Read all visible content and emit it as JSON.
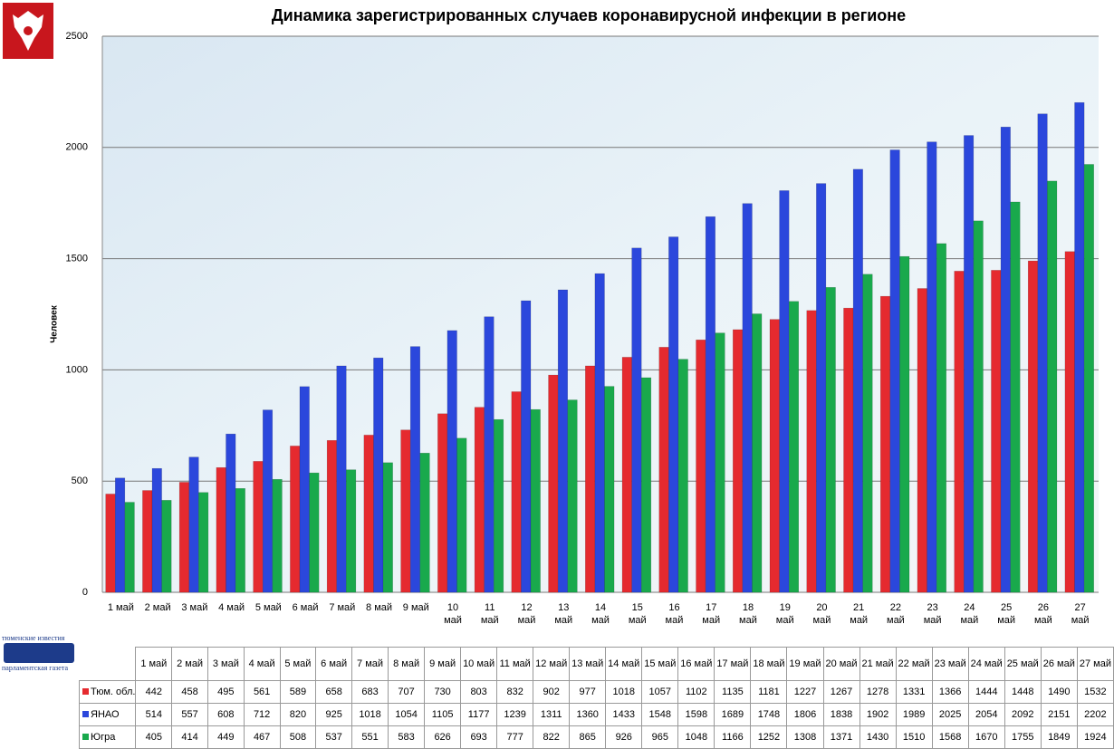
{
  "chart_data": {
    "type": "bar",
    "title": "Динамика зарегистрированных случаев коронавирусной инфекции в регионе",
    "y_label": "Человек",
    "logo": {
      "top": "тюменские известия",
      "bottom": "парламентская газета"
    },
    "categories": [
      "1 май",
      "2 май",
      "3 май",
      "4 май",
      "5 май",
      "6 май",
      "7 май",
      "8 май",
      "9 май",
      "10 май",
      "11 май",
      "12 май",
      "13 май",
      "14 май",
      "15 май",
      "16 май",
      "17 май",
      "18 май",
      "19 май",
      "20 май",
      "21 май",
      "22 май",
      "23 май",
      "24 май",
      "25 май",
      "26 май",
      "27 май"
    ],
    "series": [
      {
        "name": "Тюм. обл.",
        "color": "#e52a2f",
        "values": [
          442,
          458,
          495,
          561,
          589,
          658,
          683,
          707,
          730,
          803,
          832,
          902,
          977,
          1018,
          1057,
          1102,
          1135,
          1181,
          1227,
          1267,
          1278,
          1331,
          1366,
          1444,
          1448,
          1490,
          1532
        ]
      },
      {
        "name": "ЯНАО",
        "color": "#2b47dc",
        "values": [
          514,
          557,
          608,
          712,
          820,
          925,
          1018,
          1054,
          1105,
          1177,
          1239,
          1311,
          1360,
          1433,
          1548,
          1598,
          1689,
          1748,
          1806,
          1838,
          1902,
          1989,
          2025,
          2054,
          2092,
          2151,
          2202
        ]
      },
      {
        "name": "Югра",
        "color": "#19a94c",
        "values": [
          405,
          414,
          449,
          467,
          508,
          537,
          551,
          583,
          626,
          693,
          777,
          822,
          865,
          926,
          965,
          1048,
          1166,
          1252,
          1308,
          1371,
          1430,
          1510,
          1568,
          1670,
          1755,
          1849,
          1924
        ]
      }
    ],
    "ylim": [
      0,
      2500
    ],
    "yticks": [
      0,
      500,
      1000,
      1500,
      2000,
      2500
    ],
    "grid": true
  }
}
